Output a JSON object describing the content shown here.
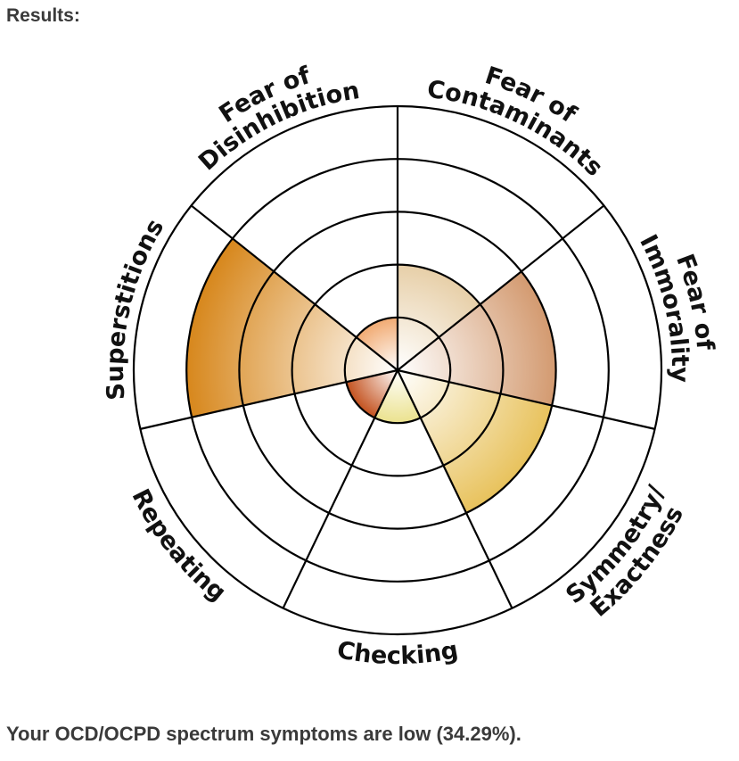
{
  "heading": "Results:",
  "summary": "Your OCD/OCPD spectrum symptoms are low (34.29%).",
  "chart_data": {
    "type": "polar-area",
    "title": "",
    "categories": [
      {
        "lines": [
          "Fear of",
          "Contaminants"
        ],
        "value": 2,
        "color": "#e7cfa8"
      },
      {
        "lines": [
          "Fear of",
          "Immorality"
        ],
        "value": 3,
        "color": "#d39a70"
      },
      {
        "lines": [
          "Symmetry/",
          "Exactness"
        ],
        "value": 3,
        "color": "#e8c25c"
      },
      {
        "lines": [
          "Checking"
        ],
        "value": 1,
        "color": "#ebe28e"
      },
      {
        "lines": [
          "Repeating"
        ],
        "value": 1,
        "color": "#c4521f"
      },
      {
        "lines": [
          "Superstitions"
        ],
        "value": 4,
        "color": "#d7871c"
      },
      {
        "lines": [
          "Fear of",
          "Disinhibition"
        ],
        "value": 1,
        "color": "#f1aa72"
      }
    ],
    "scale": {
      "min": 0,
      "max": 5,
      "rings": 5
    },
    "grid": true,
    "legend": "none"
  }
}
